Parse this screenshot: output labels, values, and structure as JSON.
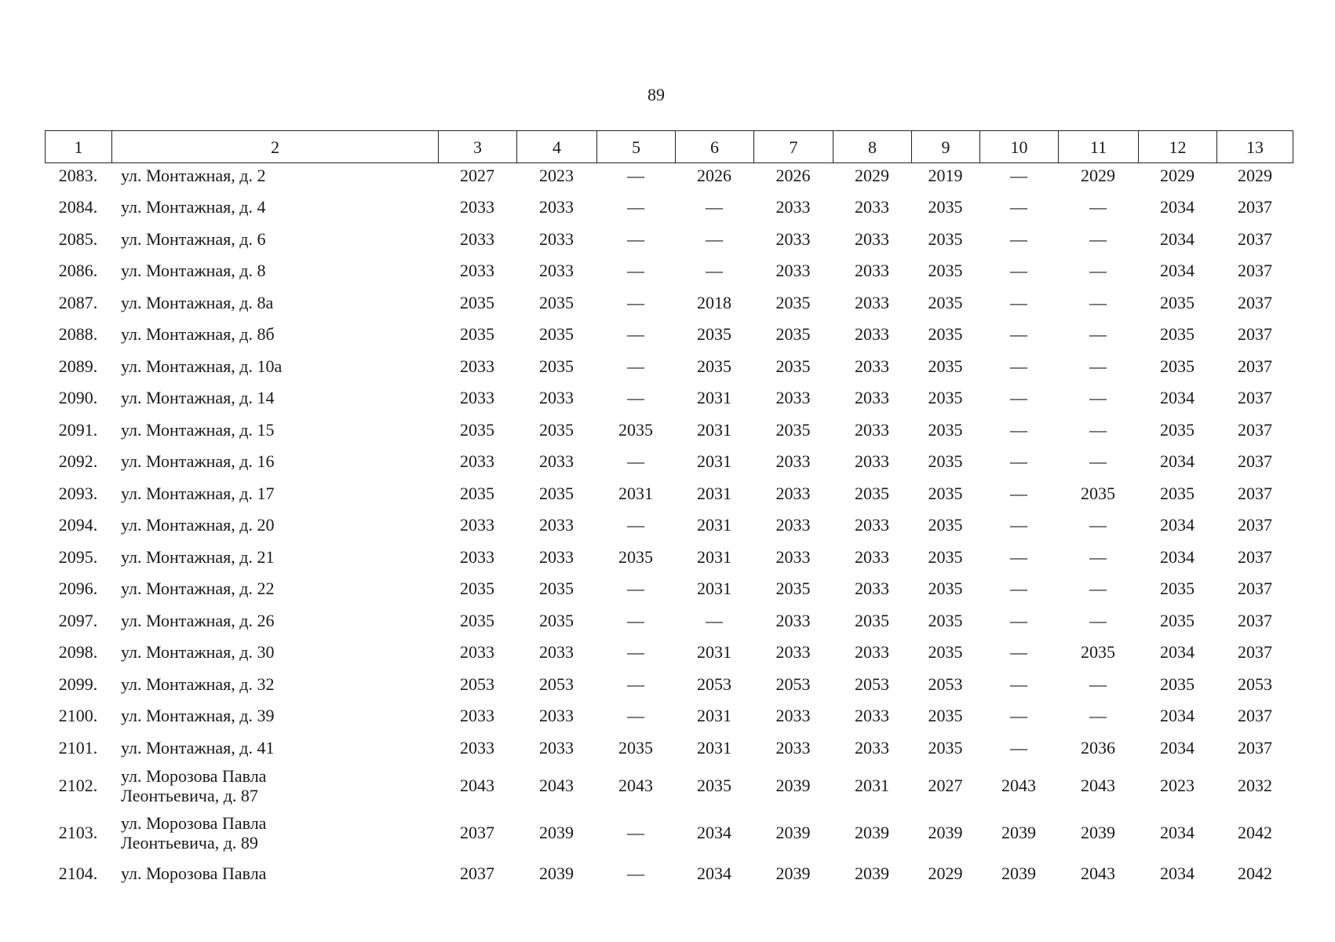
{
  "page_number": "89",
  "table": {
    "header": [
      "1",
      "2",
      "3",
      "4",
      "5",
      "6",
      "7",
      "8",
      "9",
      "10",
      "11",
      "12",
      "13"
    ],
    "rows": [
      [
        "2083.",
        "ул. Монтажная, д. 2",
        "2027",
        "2023",
        "—",
        "2026",
        "2026",
        "2029",
        "2019",
        "—",
        "2029",
        "2029",
        "2029"
      ],
      [
        "2084.",
        "ул. Монтажная, д. 4",
        "2033",
        "2033",
        "—",
        "—",
        "2033",
        "2033",
        "2035",
        "—",
        "—",
        "2034",
        "2037"
      ],
      [
        "2085.",
        "ул. Монтажная, д. 6",
        "2033",
        "2033",
        "—",
        "—",
        "2033",
        "2033",
        "2035",
        "—",
        "—",
        "2034",
        "2037"
      ],
      [
        "2086.",
        "ул. Монтажная, д. 8",
        "2033",
        "2033",
        "—",
        "—",
        "2033",
        "2033",
        "2035",
        "—",
        "—",
        "2034",
        "2037"
      ],
      [
        "2087.",
        "ул. Монтажная, д. 8а",
        "2035",
        "2035",
        "—",
        "2018",
        "2035",
        "2033",
        "2035",
        "—",
        "—",
        "2035",
        "2037"
      ],
      [
        "2088.",
        "ул. Монтажная, д. 8б",
        "2035",
        "2035",
        "—",
        "2035",
        "2035",
        "2033",
        "2035",
        "—",
        "—",
        "2035",
        "2037"
      ],
      [
        "2089.",
        "ул. Монтажная, д. 10а",
        "2033",
        "2035",
        "—",
        "2035",
        "2035",
        "2033",
        "2035",
        "—",
        "—",
        "2035",
        "2037"
      ],
      [
        "2090.",
        "ул. Монтажная, д. 14",
        "2033",
        "2033",
        "—",
        "2031",
        "2033",
        "2033",
        "2035",
        "—",
        "—",
        "2034",
        "2037"
      ],
      [
        "2091.",
        "ул. Монтажная, д. 15",
        "2035",
        "2035",
        "2035",
        "2031",
        "2035",
        "2033",
        "2035",
        "—",
        "—",
        "2035",
        "2037"
      ],
      [
        "2092.",
        "ул. Монтажная, д. 16",
        "2033",
        "2033",
        "—",
        "2031",
        "2033",
        "2033",
        "2035",
        "—",
        "—",
        "2034",
        "2037"
      ],
      [
        "2093.",
        "ул. Монтажная, д. 17",
        "2035",
        "2035",
        "2031",
        "2031",
        "2033",
        "2035",
        "2035",
        "—",
        "2035",
        "2035",
        "2037"
      ],
      [
        "2094.",
        "ул. Монтажная, д. 20",
        "2033",
        "2033",
        "—",
        "2031",
        "2033",
        "2033",
        "2035",
        "—",
        "—",
        "2034",
        "2037"
      ],
      [
        "2095.",
        "ул. Монтажная, д. 21",
        "2033",
        "2033",
        "2035",
        "2031",
        "2033",
        "2033",
        "2035",
        "—",
        "—",
        "2034",
        "2037"
      ],
      [
        "2096.",
        "ул. Монтажная, д. 22",
        "2035",
        "2035",
        "—",
        "2031",
        "2035",
        "2033",
        "2035",
        "—",
        "—",
        "2035",
        "2037"
      ],
      [
        "2097.",
        "ул. Монтажная, д. 26",
        "2035",
        "2035",
        "—",
        "—",
        "2033",
        "2035",
        "2035",
        "—",
        "—",
        "2035",
        "2037"
      ],
      [
        "2098.",
        "ул. Монтажная, д. 30",
        "2033",
        "2033",
        "—",
        "2031",
        "2033",
        "2033",
        "2035",
        "—",
        "2035",
        "2034",
        "2037"
      ],
      [
        "2099.",
        "ул. Монтажная, д. 32",
        "2053",
        "2053",
        "—",
        "2053",
        "2053",
        "2053",
        "2053",
        "—",
        "—",
        "2035",
        "2053"
      ],
      [
        "2100.",
        "ул. Монтажная, д. 39",
        "2033",
        "2033",
        "—",
        "2031",
        "2033",
        "2033",
        "2035",
        "—",
        "—",
        "2034",
        "2037"
      ],
      [
        "2101.",
        "ул. Монтажная, д. 41",
        "2033",
        "2033",
        "2035",
        "2031",
        "2033",
        "2033",
        "2035",
        "—",
        "2036",
        "2034",
        "2037"
      ],
      [
        "2102.",
        "ул. Морозова Павла\nЛеонтьевича, д. 87",
        "2043",
        "2043",
        "2043",
        "2035",
        "2039",
        "2031",
        "2027",
        "2043",
        "2043",
        "2023",
        "2032"
      ],
      [
        "2103.",
        "ул. Морозова Павла\nЛеонтьевича, д. 89",
        "2037",
        "2039",
        "—",
        "2034",
        "2039",
        "2039",
        "2039",
        "2039",
        "2039",
        "2034",
        "2042"
      ],
      [
        "2104.",
        "ул. Морозова Павла",
        "2037",
        "2039",
        "—",
        "2034",
        "2039",
        "2039",
        "2029",
        "2039",
        "2043",
        "2034",
        "2042"
      ]
    ]
  }
}
